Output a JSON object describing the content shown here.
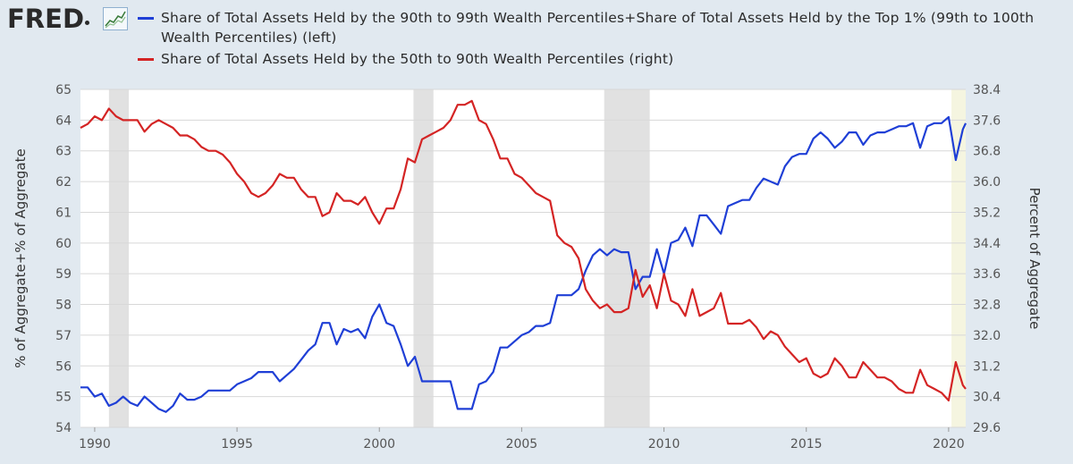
{
  "header": {
    "logo_text": "FRED",
    "logo_icon": "line-chart-icon"
  },
  "colors": {
    "series_blue": "#1f3fd6",
    "series_red": "#d42424",
    "recession_shade": "#e1e1e1",
    "recent_shade": "#f5f5e0",
    "background": "#e1e9f0",
    "plot_background": "#ffffff"
  },
  "chart_data": {
    "type": "line",
    "dual_axis": true,
    "grid": true,
    "legend_placement": "top",
    "xlim": [
      1989.5,
      2020.6
    ],
    "x_ticks": [
      "1990",
      "1995",
      "2000",
      "2005",
      "2010",
      "2015",
      "2020"
    ],
    "x_tick_values": [
      1990,
      1995,
      2000,
      2005,
      2010,
      2015,
      2020
    ],
    "y_left": {
      "label": "% of Aggregate+% of Aggregate",
      "lim": [
        54,
        65
      ],
      "ticks": [
        "54",
        "55",
        "56",
        "57",
        "58",
        "59",
        "60",
        "61",
        "62",
        "63",
        "64",
        "65"
      ]
    },
    "y_right": {
      "label": "Percent of Aggregate",
      "lim": [
        29.6,
        38.4
      ],
      "ticks": [
        "29.6",
        "30.4",
        "31.2",
        "32.0",
        "32.8",
        "33.6",
        "34.4",
        "35.2",
        "36.0",
        "36.8",
        "37.6",
        "38.4"
      ]
    },
    "recessions": [
      [
        1990.5,
        1991.2
      ],
      [
        2001.2,
        2001.9
      ],
      [
        2007.9,
        2009.5
      ]
    ],
    "highlight_recent": [
      2020.1,
      2020.6
    ],
    "series": [
      {
        "name": "Share of Total Assets Held by the 90th to 99th Wealth Percentiles+Share of Total Assets Held by the Top 1% (99th to 100th Wealth Percentiles) (left)",
        "axis": "left",
        "color": "#1f3fd6",
        "points": [
          [
            1989.5,
            55.3
          ],
          [
            1989.75,
            55.3
          ],
          [
            1990.0,
            55.0
          ],
          [
            1990.25,
            55.1
          ],
          [
            1990.5,
            54.7
          ],
          [
            1990.75,
            54.8
          ],
          [
            1991.0,
            55.0
          ],
          [
            1991.25,
            54.8
          ],
          [
            1991.5,
            54.7
          ],
          [
            1991.75,
            55.0
          ],
          [
            1992.0,
            54.8
          ],
          [
            1992.25,
            54.6
          ],
          [
            1992.5,
            54.5
          ],
          [
            1992.75,
            54.7
          ],
          [
            1993.0,
            55.1
          ],
          [
            1993.25,
            54.9
          ],
          [
            1993.5,
            54.9
          ],
          [
            1993.75,
            55.0
          ],
          [
            1994.0,
            55.2
          ],
          [
            1994.25,
            55.2
          ],
          [
            1994.5,
            55.2
          ],
          [
            1994.75,
            55.2
          ],
          [
            1995.0,
            55.4
          ],
          [
            1995.25,
            55.5
          ],
          [
            1995.5,
            55.6
          ],
          [
            1995.75,
            55.8
          ],
          [
            1996.0,
            55.8
          ],
          [
            1996.25,
            55.8
          ],
          [
            1996.5,
            55.5
          ],
          [
            1996.75,
            55.7
          ],
          [
            1997.0,
            55.9
          ],
          [
            1997.25,
            56.2
          ],
          [
            1997.5,
            56.5
          ],
          [
            1997.75,
            56.7
          ],
          [
            1998.0,
            57.4
          ],
          [
            1998.25,
            57.4
          ],
          [
            1998.5,
            56.7
          ],
          [
            1998.75,
            57.2
          ],
          [
            1999.0,
            57.1
          ],
          [
            1999.25,
            57.2
          ],
          [
            1999.5,
            56.9
          ],
          [
            1999.75,
            57.6
          ],
          [
            2000.0,
            58.0
          ],
          [
            2000.25,
            57.4
          ],
          [
            2000.5,
            57.3
          ],
          [
            2000.75,
            56.7
          ],
          [
            2001.0,
            56.0
          ],
          [
            2001.25,
            56.3
          ],
          [
            2001.5,
            55.5
          ],
          [
            2001.75,
            55.5
          ],
          [
            2002.0,
            55.5
          ],
          [
            2002.25,
            55.5
          ],
          [
            2002.5,
            55.5
          ],
          [
            2002.75,
            54.6
          ],
          [
            2003.0,
            54.6
          ],
          [
            2003.25,
            54.6
          ],
          [
            2003.5,
            55.4
          ],
          [
            2003.75,
            55.5
          ],
          [
            2004.0,
            55.8
          ],
          [
            2004.25,
            56.6
          ],
          [
            2004.5,
            56.6
          ],
          [
            2004.75,
            56.8
          ],
          [
            2005.0,
            57.0
          ],
          [
            2005.25,
            57.1
          ],
          [
            2005.5,
            57.3
          ],
          [
            2005.75,
            57.3
          ],
          [
            2006.0,
            57.4
          ],
          [
            2006.25,
            58.3
          ],
          [
            2006.5,
            58.3
          ],
          [
            2006.75,
            58.3
          ],
          [
            2007.0,
            58.5
          ],
          [
            2007.25,
            59.1
          ],
          [
            2007.5,
            59.6
          ],
          [
            2007.75,
            59.8
          ],
          [
            2008.0,
            59.6
          ],
          [
            2008.25,
            59.8
          ],
          [
            2008.5,
            59.7
          ],
          [
            2008.75,
            59.7
          ],
          [
            2009.0,
            58.5
          ],
          [
            2009.25,
            58.9
          ],
          [
            2009.5,
            58.9
          ],
          [
            2009.75,
            59.8
          ],
          [
            2010.0,
            59.0
          ],
          [
            2010.25,
            60.0
          ],
          [
            2010.5,
            60.1
          ],
          [
            2010.75,
            60.5
          ],
          [
            2011.0,
            59.9
          ],
          [
            2011.25,
            60.9
          ],
          [
            2011.5,
            60.9
          ],
          [
            2011.75,
            60.6
          ],
          [
            2012.0,
            60.3
          ],
          [
            2012.25,
            61.2
          ],
          [
            2012.5,
            61.3
          ],
          [
            2012.75,
            61.4
          ],
          [
            2013.0,
            61.4
          ],
          [
            2013.25,
            61.8
          ],
          [
            2013.5,
            62.1
          ],
          [
            2013.75,
            62.0
          ],
          [
            2014.0,
            61.9
          ],
          [
            2014.25,
            62.5
          ],
          [
            2014.5,
            62.8
          ],
          [
            2014.75,
            62.9
          ],
          [
            2015.0,
            62.9
          ],
          [
            2015.25,
            63.4
          ],
          [
            2015.5,
            63.6
          ],
          [
            2015.75,
            63.4
          ],
          [
            2016.0,
            63.1
          ],
          [
            2016.25,
            63.3
          ],
          [
            2016.5,
            63.6
          ],
          [
            2016.75,
            63.6
          ],
          [
            2017.0,
            63.2
          ],
          [
            2017.25,
            63.5
          ],
          [
            2017.5,
            63.6
          ],
          [
            2017.75,
            63.6
          ],
          [
            2018.0,
            63.7
          ],
          [
            2018.25,
            63.8
          ],
          [
            2018.5,
            63.8
          ],
          [
            2018.75,
            63.9
          ],
          [
            2019.0,
            63.1
          ],
          [
            2019.25,
            63.8
          ],
          [
            2019.5,
            63.9
          ],
          [
            2019.75,
            63.9
          ],
          [
            2020.0,
            64.1
          ],
          [
            2020.25,
            62.7
          ],
          [
            2020.5,
            63.7
          ],
          [
            2020.6,
            63.9
          ]
        ]
      },
      {
        "name": "Share of Total Assets Held by the 50th to 90th Wealth Percentiles (right)",
        "axis": "right",
        "color": "#d42424",
        "points": [
          [
            1989.5,
            37.4
          ],
          [
            1989.75,
            37.5
          ],
          [
            1990.0,
            37.7
          ],
          [
            1990.25,
            37.6
          ],
          [
            1990.5,
            37.9
          ],
          [
            1990.75,
            37.7
          ],
          [
            1991.0,
            37.6
          ],
          [
            1991.25,
            37.6
          ],
          [
            1991.5,
            37.6
          ],
          [
            1991.75,
            37.3
          ],
          [
            1992.0,
            37.5
          ],
          [
            1992.25,
            37.6
          ],
          [
            1992.5,
            37.5
          ],
          [
            1992.75,
            37.4
          ],
          [
            1993.0,
            37.2
          ],
          [
            1993.25,
            37.2
          ],
          [
            1993.5,
            37.1
          ],
          [
            1993.75,
            36.9
          ],
          [
            1994.0,
            36.8
          ],
          [
            1994.25,
            36.8
          ],
          [
            1994.5,
            36.7
          ],
          [
            1994.75,
            36.5
          ],
          [
            1995.0,
            36.2
          ],
          [
            1995.25,
            36.0
          ],
          [
            1995.5,
            35.7
          ],
          [
            1995.75,
            35.6
          ],
          [
            1996.0,
            35.7
          ],
          [
            1996.25,
            35.9
          ],
          [
            1996.5,
            36.2
          ],
          [
            1996.75,
            36.1
          ],
          [
            1997.0,
            36.1
          ],
          [
            1997.25,
            35.8
          ],
          [
            1997.5,
            35.6
          ],
          [
            1997.75,
            35.6
          ],
          [
            1998.0,
            35.1
          ],
          [
            1998.25,
            35.2
          ],
          [
            1998.5,
            35.7
          ],
          [
            1998.75,
            35.5
          ],
          [
            1999.0,
            35.5
          ],
          [
            1999.25,
            35.4
          ],
          [
            1999.5,
            35.6
          ],
          [
            1999.75,
            35.2
          ],
          [
            2000.0,
            34.9
          ],
          [
            2000.25,
            35.3
          ],
          [
            2000.5,
            35.3
          ],
          [
            2000.75,
            35.8
          ],
          [
            2001.0,
            36.6
          ],
          [
            2001.25,
            36.5
          ],
          [
            2001.5,
            37.1
          ],
          [
            2001.75,
            37.2
          ],
          [
            2002.0,
            37.3
          ],
          [
            2002.25,
            37.4
          ],
          [
            2002.5,
            37.6
          ],
          [
            2002.75,
            38.0
          ],
          [
            2003.0,
            38.0
          ],
          [
            2003.25,
            38.1
          ],
          [
            2003.5,
            37.6
          ],
          [
            2003.75,
            37.5
          ],
          [
            2004.0,
            37.1
          ],
          [
            2004.25,
            36.6
          ],
          [
            2004.5,
            36.6
          ],
          [
            2004.75,
            36.2
          ],
          [
            2005.0,
            36.1
          ],
          [
            2005.25,
            35.9
          ],
          [
            2005.5,
            35.7
          ],
          [
            2005.75,
            35.6
          ],
          [
            2006.0,
            35.5
          ],
          [
            2006.25,
            34.6
          ],
          [
            2006.5,
            34.4
          ],
          [
            2006.75,
            34.3
          ],
          [
            2007.0,
            34.0
          ],
          [
            2007.25,
            33.2
          ],
          [
            2007.5,
            32.9
          ],
          [
            2007.75,
            32.7
          ],
          [
            2008.0,
            32.8
          ],
          [
            2008.25,
            32.6
          ],
          [
            2008.5,
            32.6
          ],
          [
            2008.75,
            32.7
          ],
          [
            2009.0,
            33.7
          ],
          [
            2009.25,
            33.0
          ],
          [
            2009.5,
            33.3
          ],
          [
            2009.75,
            32.7
          ],
          [
            2010.0,
            33.6
          ],
          [
            2010.25,
            32.9
          ],
          [
            2010.5,
            32.8
          ],
          [
            2010.75,
            32.5
          ],
          [
            2011.0,
            33.2
          ],
          [
            2011.25,
            32.5
          ],
          [
            2011.5,
            32.6
          ],
          [
            2011.75,
            32.7
          ],
          [
            2012.0,
            33.1
          ],
          [
            2012.25,
            32.3
          ],
          [
            2012.5,
            32.3
          ],
          [
            2012.75,
            32.3
          ],
          [
            2013.0,
            32.4
          ],
          [
            2013.25,
            32.2
          ],
          [
            2013.5,
            31.9
          ],
          [
            2013.75,
            32.1
          ],
          [
            2014.0,
            32.0
          ],
          [
            2014.25,
            31.7
          ],
          [
            2014.5,
            31.5
          ],
          [
            2014.75,
            31.3
          ],
          [
            2015.0,
            31.4
          ],
          [
            2015.25,
            31.0
          ],
          [
            2015.5,
            30.9
          ],
          [
            2015.75,
            31.0
          ],
          [
            2016.0,
            31.4
          ],
          [
            2016.25,
            31.2
          ],
          [
            2016.5,
            30.9
          ],
          [
            2016.75,
            30.9
          ],
          [
            2017.0,
            31.3
          ],
          [
            2017.25,
            31.1
          ],
          [
            2017.5,
            30.9
          ],
          [
            2017.75,
            30.9
          ],
          [
            2018.0,
            30.8
          ],
          [
            2018.25,
            30.6
          ],
          [
            2018.5,
            30.5
          ],
          [
            2018.75,
            30.5
          ],
          [
            2019.0,
            31.1
          ],
          [
            2019.25,
            30.7
          ],
          [
            2019.5,
            30.6
          ],
          [
            2019.75,
            30.5
          ],
          [
            2020.0,
            30.3
          ],
          [
            2020.25,
            31.3
          ],
          [
            2020.5,
            30.7
          ],
          [
            2020.6,
            30.6
          ]
        ]
      }
    ]
  }
}
